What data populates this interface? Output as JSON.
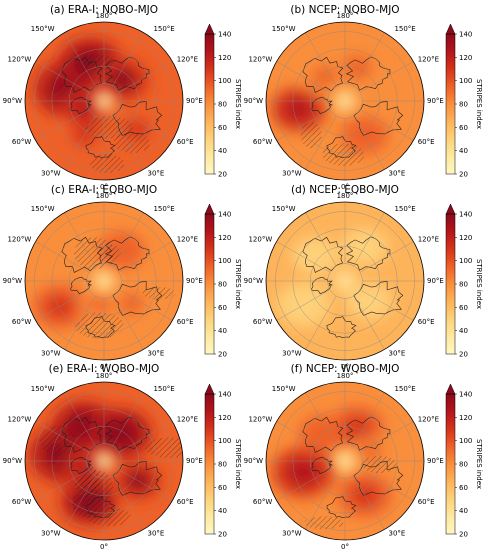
{
  "figure": {
    "panels": [
      {
        "id": "a",
        "title": "(a) ERA-I: NQBO-MJO",
        "intensity": 1.0,
        "hatch": "moderate"
      },
      {
        "id": "b",
        "title": "(b) NCEP: NQBO-MJO",
        "intensity": 0.78,
        "hatch": "light"
      },
      {
        "id": "c",
        "title": "(c) ERA-I: EQBO-MJO",
        "intensity": 0.72,
        "hatch": "moderate"
      },
      {
        "id": "d",
        "title": "(d) NCEP: EQBO-MJO",
        "intensity": 0.42,
        "hatch": "none"
      },
      {
        "id": "e",
        "title": "(e) ERA-I: WQBO-MJO",
        "intensity": 1.0,
        "hatch": "heavy"
      },
      {
        "id": "f",
        "title": "(f) NCEP: WQBO-MJO",
        "intensity": 0.82,
        "hatch": "light"
      }
    ],
    "longitude_labels": {
      "top": "180°",
      "top_left": "150°W",
      "top_right": "150°E",
      "upper_left": "120°W",
      "upper_right": "120°E",
      "left": "90°W",
      "right": "90°E",
      "lower_left": "60°W",
      "lower_right": "60°E",
      "bottom_left": "30°W",
      "bottom_right": "30°E",
      "bottom": "0°"
    },
    "colorbar": {
      "label": "STRIPES index",
      "ticks": [
        "20",
        "40",
        "60",
        "80",
        "100",
        "120",
        "140"
      ],
      "extend": "max",
      "colors": [
        "#fff7c2",
        "#fee9a0",
        "#fed27a",
        "#fdb35a",
        "#f98e3c",
        "#ee6128",
        "#d6331b",
        "#b4151b",
        "#8c0a1c"
      ]
    }
  },
  "chart_data": {
    "type": "heatmap",
    "projection": "north polar stereographic",
    "variable": "STRIPES index",
    "color_range": [
      20,
      140
    ],
    "panels": [
      {
        "title": "(a) ERA-I: NQBO-MJO",
        "dataset": "ERA-I",
        "phase": "NQBO-MJO"
      },
      {
        "title": "(b) NCEP: NQBO-MJO",
        "dataset": "NCEP",
        "phase": "NQBO-MJO"
      },
      {
        "title": "(c) ERA-I: EQBO-MJO",
        "dataset": "ERA-I",
        "phase": "EQBO-MJO"
      },
      {
        "title": "(d) NCEP: EQBO-MJO",
        "dataset": "NCEP",
        "phase": "EQBO-MJO"
      },
      {
        "title": "(e) ERA-I: WQBO-MJO",
        "dataset": "ERA-I",
        "phase": "WQBO-MJO"
      },
      {
        "title": "(f) NCEP: WQBO-MJO",
        "dataset": "NCEP",
        "phase": "WQBO-MJO"
      }
    ]
  }
}
